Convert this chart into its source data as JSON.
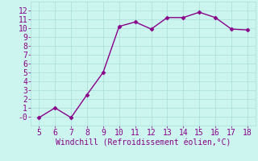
{
  "x": [
    5,
    6,
    7,
    8,
    9,
    10,
    11,
    12,
    13,
    14,
    15,
    16,
    17,
    18
  ],
  "y": [
    -0.1,
    1.0,
    -0.1,
    2.5,
    5.0,
    10.2,
    10.7,
    9.9,
    11.2,
    11.2,
    11.8,
    11.2,
    9.9,
    9.8
  ],
  "line_color": "#880088",
  "marker": "D",
  "marker_size": 2.5,
  "xlabel": "Windchill (Refroidissement éolien,°C)",
  "xlim": [
    4.5,
    18.5
  ],
  "ylim": [
    -1.0,
    13.0
  ],
  "xticks": [
    5,
    6,
    7,
    8,
    9,
    10,
    11,
    12,
    13,
    14,
    15,
    16,
    17,
    18
  ],
  "yticks": [
    0,
    1,
    2,
    3,
    4,
    5,
    6,
    7,
    8,
    9,
    10,
    11,
    12
  ],
  "ytick_labels": [
    "-0",
    "1",
    "2",
    "3",
    "4",
    "5",
    "6",
    "7",
    "8",
    "9",
    "10",
    "11",
    "12"
  ],
  "bg_color": "#ccf5ef",
  "grid_color": "#aaded8",
  "label_color": "#880088",
  "xlabel_fontsize": 7,
  "tick_fontsize": 7,
  "linewidth": 1.0
}
